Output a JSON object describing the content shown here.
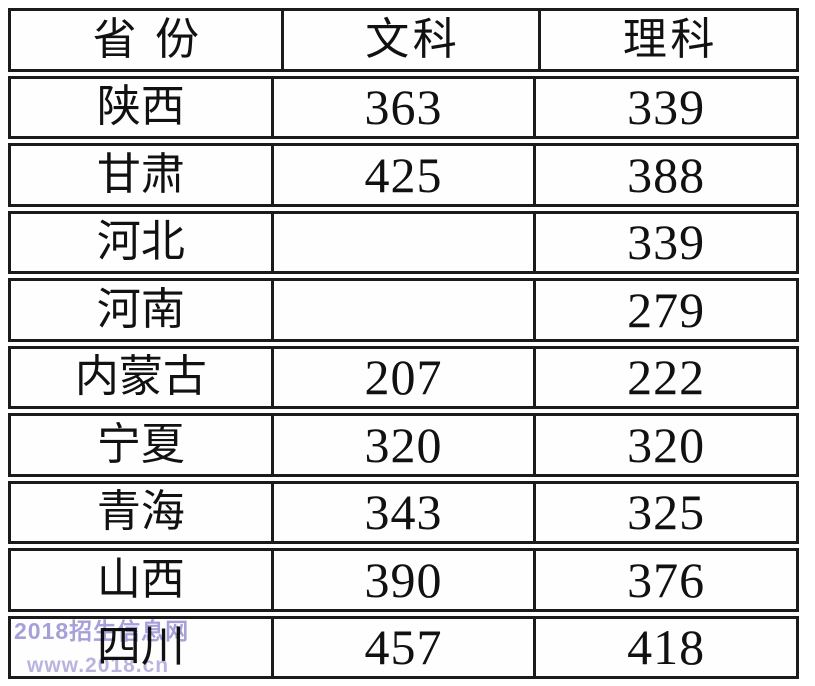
{
  "colors": {
    "border": "#1b1b1b",
    "text": "#111111",
    "background": "#ffffff"
  },
  "watermark": {
    "line1": "2018招生信息网",
    "line2": "www.2018.cn",
    "line1_color": "#9e97d6",
    "line2_color": "#b2addd"
  },
  "table": {
    "columns": [
      "省份",
      "文科",
      "理科"
    ],
    "rows": [
      {
        "province": "陕西",
        "arts": "363",
        "science": "339"
      },
      {
        "province": "甘肃",
        "arts": "425",
        "science": "388"
      },
      {
        "province": "河北",
        "arts": "",
        "science": "339"
      },
      {
        "province": "河南",
        "arts": "",
        "science": "279"
      },
      {
        "province": "内蒙古",
        "arts": "207",
        "science": "222"
      },
      {
        "province": "宁夏",
        "arts": "320",
        "science": "320"
      },
      {
        "province": "青海",
        "arts": "343",
        "science": "325"
      },
      {
        "province": "山西",
        "arts": "390",
        "science": "376"
      },
      {
        "province": "四川",
        "arts": "457",
        "science": "418"
      }
    ]
  },
  "chart_data": {
    "type": "table",
    "columns": [
      "省份",
      "文科",
      "理科"
    ],
    "rows": [
      [
        "陕西",
        363,
        339
      ],
      [
        "甘肃",
        425,
        388
      ],
      [
        "河北",
        null,
        339
      ],
      [
        "河南",
        null,
        279
      ],
      [
        "内蒙古",
        207,
        222
      ],
      [
        "宁夏",
        320,
        320
      ],
      [
        "青海",
        343,
        325
      ],
      [
        "山西",
        390,
        376
      ],
      [
        "四川",
        457,
        418
      ]
    ]
  }
}
